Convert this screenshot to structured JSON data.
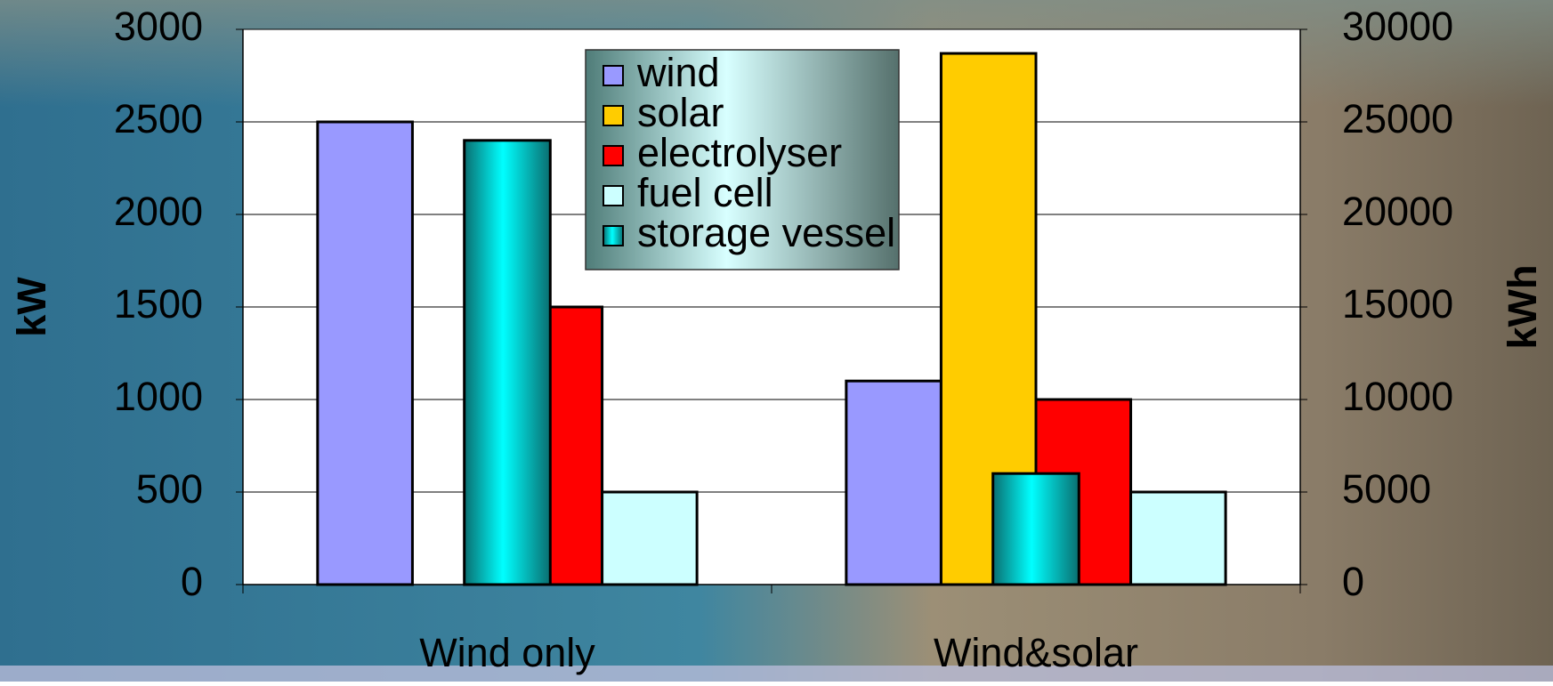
{
  "chart_data": {
    "type": "bar",
    "categories": [
      "Wind only",
      "Wind&solar"
    ],
    "y_label": "kW",
    "y2_label": "kWh",
    "ylim": [
      0,
      3000
    ],
    "yticks": [
      0,
      500,
      1000,
      1500,
      2000,
      2500,
      3000
    ],
    "y2lim": [
      0,
      30000
    ],
    "y2ticks": [
      0,
      5000,
      10000,
      15000,
      20000,
      25000,
      30000
    ],
    "grid": true,
    "legend": "top-center",
    "series": [
      {
        "name": "wind",
        "color": "#9999ff",
        "values": [
          2500,
          1100
        ]
      },
      {
        "name": "solar",
        "color": "#ffcc00",
        "values": [
          null,
          2870
        ]
      },
      {
        "name": "electrolyser",
        "color": "#ff0000",
        "values": [
          1500,
          1000
        ]
      },
      {
        "name": "fuel cell",
        "color": "#ccffff",
        "values": [
          500,
          500
        ]
      },
      {
        "name": "storage vessel",
        "color": "#00ffff",
        "values": [
          24000,
          6000
        ],
        "axis": "y2"
      }
    ]
  }
}
